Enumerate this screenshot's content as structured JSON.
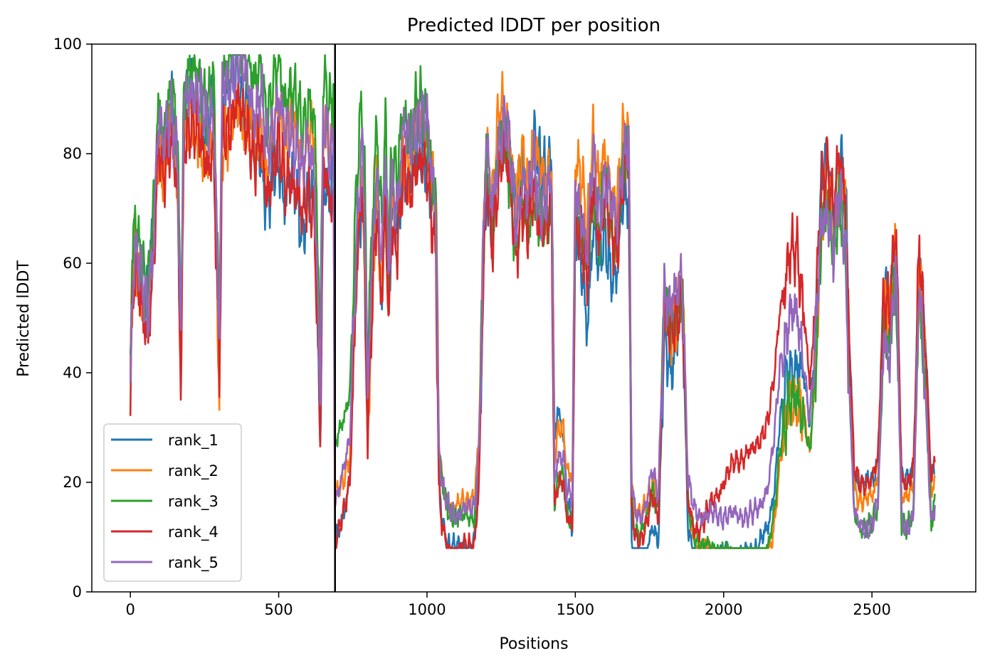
{
  "chart_data": {
    "type": "line",
    "title": "Predicted lDDT per position",
    "xlabel": "Positions",
    "ylabel": "Predicted lDDT",
    "xlim": [
      -130,
      2850
    ],
    "ylim": [
      0,
      100
    ],
    "xticks": [
      0,
      500,
      1000,
      1500,
      2000,
      2500
    ],
    "yticks": [
      0,
      20,
      40,
      60,
      80,
      100
    ],
    "vertical_line_x": 690,
    "legend_position": "lower-left",
    "grid": false,
    "series": [
      {
        "name": "rank_1",
        "color": "#1f77b4",
        "bias": [
          [
            10,
            0
          ],
          [
            350,
            0
          ],
          [
            470,
            -10
          ],
          [
            1010,
            -4
          ],
          [
            1150,
            -6
          ],
          [
            1440,
            8
          ],
          [
            1520,
            -12
          ],
          [
            1650,
            -10
          ],
          [
            2220,
            -6
          ],
          [
            2340,
            6
          ],
          [
            2400,
            6
          ]
        ]
      },
      {
        "name": "rank_2",
        "color": "#ff7f0e",
        "bias": [
          [
            10,
            0
          ],
          [
            350,
            -8
          ],
          [
            620,
            5
          ],
          [
            800,
            -6
          ],
          [
            1000,
            2
          ],
          [
            1260,
            3
          ],
          [
            1550,
            5
          ],
          [
            2200,
            -14
          ],
          [
            2380,
            3
          ]
        ]
      },
      {
        "name": "rank_3",
        "color": "#2ca02c",
        "bias": [
          [
            10,
            5
          ],
          [
            120,
            3
          ],
          [
            700,
            10
          ],
          [
            1330,
            -5
          ],
          [
            1450,
            -4
          ],
          [
            1820,
            -3
          ],
          [
            2220,
            -12
          ],
          [
            2330,
            -2
          ]
        ]
      },
      {
        "name": "rank_4",
        "color": "#d62728",
        "bias": [
          [
            10,
            -4
          ],
          [
            250,
            -6
          ],
          [
            620,
            -8
          ],
          [
            1370,
            -5
          ],
          [
            1900,
            -4
          ],
          [
            2040,
            10
          ],
          [
            2250,
            16
          ],
          [
            2300,
            6
          ]
        ]
      },
      {
        "name": "rank_5",
        "color": "#9467bd",
        "bias": [
          [
            10,
            0
          ],
          [
            380,
            2
          ],
          [
            700,
            0
          ],
          [
            1000,
            2
          ],
          [
            1250,
            0
          ],
          [
            2120,
            0
          ],
          [
            2220,
            5
          ],
          [
            2350,
            -2
          ]
        ]
      }
    ],
    "profile": [
      [
        0,
        38
      ],
      [
        5,
        52
      ],
      [
        15,
        62
      ],
      [
        30,
        58
      ],
      [
        45,
        55
      ],
      [
        60,
        52
      ],
      [
        70,
        60
      ],
      [
        80,
        65
      ],
      [
        90,
        80
      ],
      [
        100,
        85
      ],
      [
        110,
        80
      ],
      [
        120,
        85
      ],
      [
        140,
        88
      ],
      [
        160,
        75
      ],
      [
        170,
        41
      ],
      [
        180,
        88
      ],
      [
        200,
        92
      ],
      [
        230,
        88
      ],
      [
        260,
        85
      ],
      [
        280,
        88
      ],
      [
        300,
        43
      ],
      [
        310,
        90
      ],
      [
        330,
        92
      ],
      [
        360,
        95
      ],
      [
        380,
        93
      ],
      [
        400,
        92
      ],
      [
        420,
        85
      ],
      [
        440,
        88
      ],
      [
        460,
        80
      ],
      [
        480,
        85
      ],
      [
        500,
        88
      ],
      [
        520,
        82
      ],
      [
        540,
        85
      ],
      [
        560,
        80
      ],
      [
        580,
        75
      ],
      [
        600,
        82
      ],
      [
        620,
        78
      ],
      [
        640,
        35
      ],
      [
        650,
        82
      ],
      [
        660,
        85
      ],
      [
        670,
        80
      ],
      [
        685,
        83
      ],
      [
        690,
        17
      ],
      [
        700,
        18
      ],
      [
        720,
        22
      ],
      [
        740,
        28
      ],
      [
        760,
        62
      ],
      [
        780,
        80
      ],
      [
        790,
        68
      ],
      [
        800,
        33
      ],
      [
        810,
        55
      ],
      [
        830,
        78
      ],
      [
        840,
        65
      ],
      [
        850,
        60
      ],
      [
        860,
        80
      ],
      [
        870,
        55
      ],
      [
        880,
        75
      ],
      [
        900,
        70
      ],
      [
        920,
        82
      ],
      [
        940,
        80
      ],
      [
        960,
        85
      ],
      [
        980,
        84
      ],
      [
        1000,
        83
      ],
      [
        1010,
        78
      ],
      [
        1030,
        70
      ],
      [
        1040,
        25
      ],
      [
        1050,
        18
      ],
      [
        1070,
        14
      ],
      [
        1100,
        13
      ],
      [
        1130,
        14
      ],
      [
        1160,
        15
      ],
      [
        1175,
        25
      ],
      [
        1190,
        62
      ],
      [
        1200,
        80
      ],
      [
        1220,
        70
      ],
      [
        1240,
        82
      ],
      [
        1260,
        85
      ],
      [
        1280,
        80
      ],
      [
        1300,
        68
      ],
      [
        1320,
        75
      ],
      [
        1340,
        70
      ],
      [
        1360,
        80
      ],
      [
        1380,
        72
      ],
      [
        1400,
        70
      ],
      [
        1420,
        75
      ],
      [
        1430,
        20
      ],
      [
        1440,
        25
      ],
      [
        1460,
        25
      ],
      [
        1470,
        18
      ],
      [
        1490,
        17
      ],
      [
        1500,
        75
      ],
      [
        1520,
        70
      ],
      [
        1540,
        60
      ],
      [
        1560,
        80
      ],
      [
        1580,
        70
      ],
      [
        1600,
        75
      ],
      [
        1620,
        70
      ],
      [
        1640,
        68
      ],
      [
        1660,
        80
      ],
      [
        1680,
        82
      ],
      [
        1690,
        20
      ],
      [
        1700,
        15
      ],
      [
        1720,
        14
      ],
      [
        1740,
        16
      ],
      [
        1760,
        22
      ],
      [
        1780,
        18
      ],
      [
        1800,
        55
      ],
      [
        1820,
        50
      ],
      [
        1840,
        55
      ],
      [
        1860,
        60
      ],
      [
        1880,
        20
      ],
      [
        1900,
        15
      ],
      [
        1920,
        14
      ],
      [
        1950,
        14
      ],
      [
        2000,
        14
      ],
      [
        2050,
        14
      ],
      [
        2100,
        14
      ],
      [
        2150,
        18
      ],
      [
        2170,
        25
      ],
      [
        2190,
        38
      ],
      [
        2220,
        45
      ],
      [
        2250,
        46
      ],
      [
        2270,
        40
      ],
      [
        2290,
        30
      ],
      [
        2310,
        45
      ],
      [
        2330,
        70
      ],
      [
        2350,
        72
      ],
      [
        2370,
        62
      ],
      [
        2390,
        75
      ],
      [
        2410,
        68
      ],
      [
        2420,
        45
      ],
      [
        2440,
        16
      ],
      [
        2460,
        14
      ],
      [
        2480,
        14
      ],
      [
        2500,
        14
      ],
      [
        2520,
        18
      ],
      [
        2540,
        50
      ],
      [
        2560,
        45
      ],
      [
        2580,
        60
      ],
      [
        2590,
        40
      ],
      [
        2600,
        15
      ],
      [
        2620,
        14
      ],
      [
        2640,
        16
      ],
      [
        2660,
        58
      ],
      [
        2680,
        40
      ],
      [
        2700,
        14
      ],
      [
        2713,
        18
      ]
    ]
  }
}
